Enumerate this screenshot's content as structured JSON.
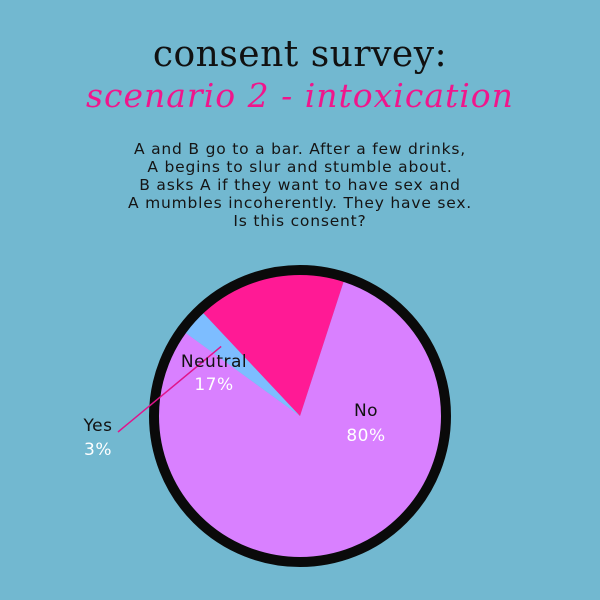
{
  "title": "consent survey:",
  "subtitle": "scenario 2 - intoxication",
  "scenario_lines": [
    "A and B go to a bar. After a few drinks,",
    "A begins to slur and stumble about.",
    "B asks A if they want to have sex and",
    "A mumbles incoherently. They have sex.",
    "Is this consent?"
  ],
  "chart_data": {
    "type": "pie",
    "slices": [
      {
        "label": "No",
        "value": 80,
        "display": "80%",
        "color": "#d980ff"
      },
      {
        "label": "Neutral",
        "value": 17,
        "display": "17%",
        "color": "#ff1a95"
      },
      {
        "label": "Yes",
        "value": 3,
        "display": "3%",
        "color": "#7dbdff"
      }
    ],
    "outline_color": "#0a0a0a",
    "label_color": "#111111",
    "value_label_color": "#ffffff",
    "leader_color": "#e0148c"
  }
}
